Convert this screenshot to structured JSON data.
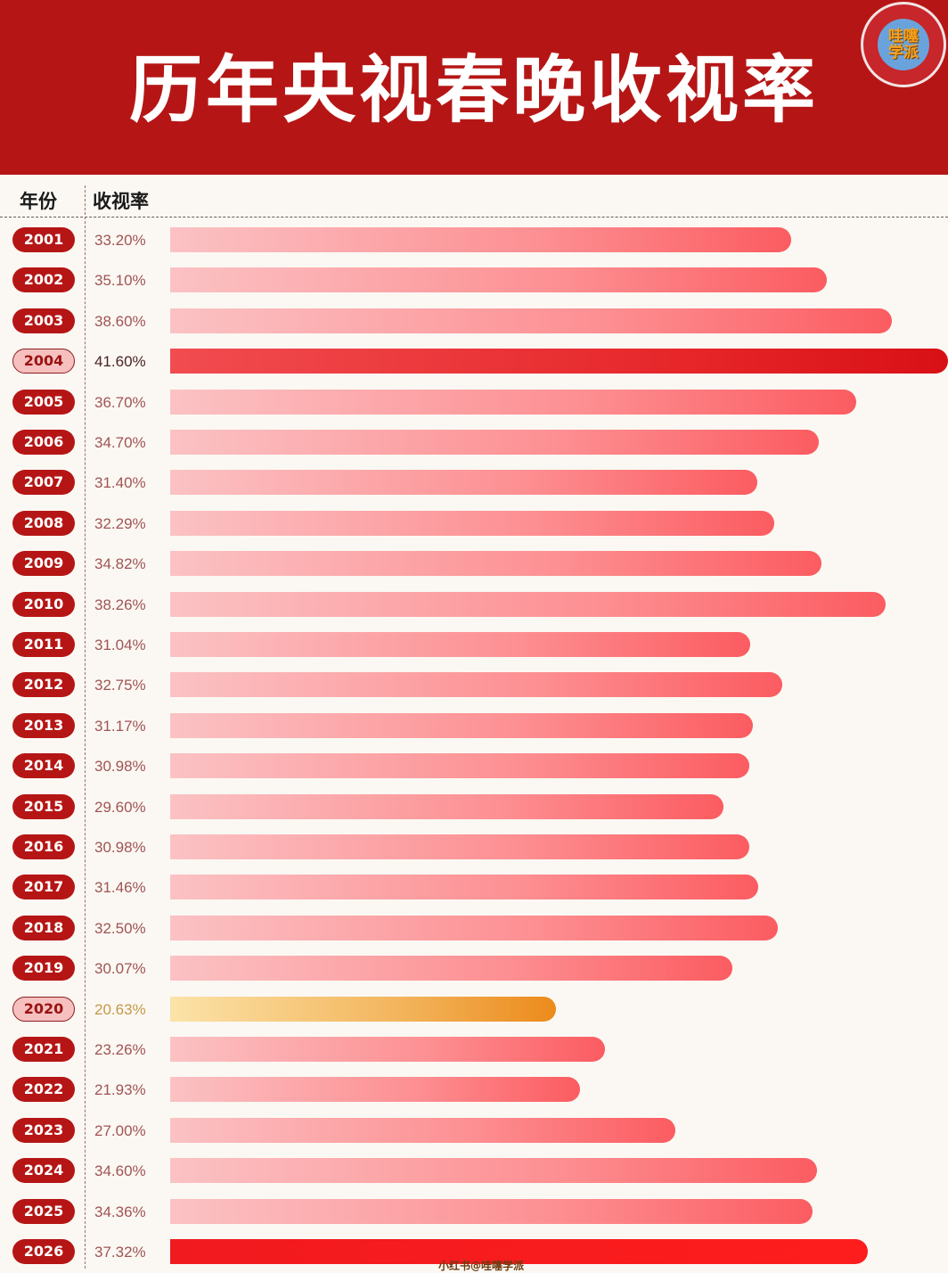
{
  "header": {
    "title": "历年央视春晚收视率",
    "logo_text_line1": "哇噻",
    "logo_text_line2": "学派"
  },
  "columns": {
    "year": "年份",
    "rating": "收视率"
  },
  "footer_watermark": "小红书@哇噻学派",
  "colors": {
    "header_bg": "#b51615",
    "pill_bg": "#b51615",
    "bar_max": "#e52427",
    "bar_min": "#ec8b1c"
  },
  "rows": [
    {
      "year": "2001",
      "label": "33.20%",
      "value": 33.2,
      "style": ""
    },
    {
      "year": "2002",
      "label": "35.10%",
      "value": 35.1,
      "style": ""
    },
    {
      "year": "2003",
      "label": "38.60%",
      "value": 38.6,
      "style": ""
    },
    {
      "year": "2004",
      "label": "41.60%",
      "value": 41.6,
      "style": "top"
    },
    {
      "year": "2005",
      "label": "36.70%",
      "value": 36.7,
      "style": ""
    },
    {
      "year": "2006",
      "label": "34.70%",
      "value": 34.7,
      "style": ""
    },
    {
      "year": "2007",
      "label": "31.40%",
      "value": 31.4,
      "style": ""
    },
    {
      "year": "2008",
      "label": "32.29%",
      "value": 32.29,
      "style": ""
    },
    {
      "year": "2009",
      "label": "34.82%",
      "value": 34.82,
      "style": ""
    },
    {
      "year": "2010",
      "label": "38.26%",
      "value": 38.26,
      "style": ""
    },
    {
      "year": "2011",
      "label": "31.04%",
      "value": 31.04,
      "style": ""
    },
    {
      "year": "2012",
      "label": "32.75%",
      "value": 32.75,
      "style": ""
    },
    {
      "year": "2013",
      "label": "31.17%",
      "value": 31.17,
      "style": ""
    },
    {
      "year": "2014",
      "label": "30.98%",
      "value": 30.98,
      "style": ""
    },
    {
      "year": "2015",
      "label": "29.60%",
      "value": 29.6,
      "style": ""
    },
    {
      "year": "2016",
      "label": "30.98%",
      "value": 30.98,
      "style": ""
    },
    {
      "year": "2017",
      "label": "31.46%",
      "value": 31.46,
      "style": ""
    },
    {
      "year": "2018",
      "label": "32.50%",
      "value": 32.5,
      "style": ""
    },
    {
      "year": "2019",
      "label": "30.07%",
      "value": 30.07,
      "style": ""
    },
    {
      "year": "2020",
      "label": "20.63%",
      "value": 20.63,
      "style": "orange"
    },
    {
      "year": "2021",
      "label": "23.26%",
      "value": 23.26,
      "style": ""
    },
    {
      "year": "2022",
      "label": "21.93%",
      "value": 21.93,
      "style": ""
    },
    {
      "year": "2023",
      "label": "27.00%",
      "value": 27.0,
      "style": ""
    },
    {
      "year": "2024",
      "label": "34.60%",
      "value": 34.6,
      "style": ""
    },
    {
      "year": "2025",
      "label": "34.36%",
      "value": 34.36,
      "style": ""
    },
    {
      "year": "2026",
      "label": "37.32%",
      "value": 37.32,
      "style": "latest"
    }
  ],
  "chart_data": {
    "type": "bar",
    "orientation": "horizontal",
    "title": "历年央视春晚收视率",
    "xlabel": "收视率",
    "ylabel": "年份",
    "categories": [
      "2001",
      "2002",
      "2003",
      "2004",
      "2005",
      "2006",
      "2007",
      "2008",
      "2009",
      "2010",
      "2011",
      "2012",
      "2013",
      "2014",
      "2015",
      "2016",
      "2017",
      "2018",
      "2019",
      "2020",
      "2021",
      "2022",
      "2023",
      "2024",
      "2025",
      "2026"
    ],
    "values": [
      33.2,
      35.1,
      38.6,
      41.6,
      36.7,
      34.7,
      31.4,
      32.29,
      34.82,
      38.26,
      31.04,
      32.75,
      31.17,
      30.98,
      29.6,
      30.98,
      31.46,
      32.5,
      30.07,
      20.63,
      23.26,
      21.93,
      27.0,
      34.6,
      34.36,
      37.32
    ],
    "unit": "%",
    "highlights": {
      "max": "2004",
      "min": "2020"
    },
    "grid": false,
    "legend": "none"
  }
}
